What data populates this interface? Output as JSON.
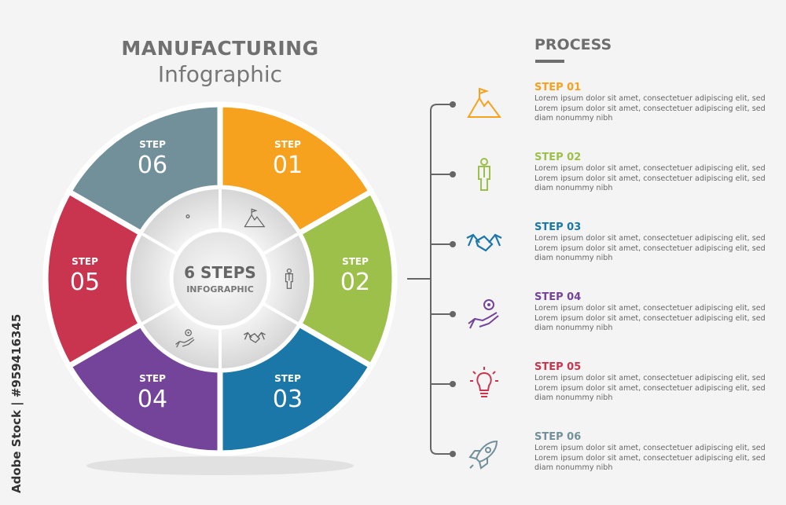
{
  "header": {
    "title": "MANUFACTURING",
    "subtitle": "Infographic"
  },
  "center": {
    "line1": "6 STEPS",
    "line2": "INFOGRAPHIC"
  },
  "process": {
    "title": "PROCESS"
  },
  "steps": [
    {
      "word": "STEP",
      "num": "01",
      "title": "STEP 01",
      "color": "#f7a21e",
      "icon": "mountain-flag-icon",
      "lines": [
        "Lorem ipsum dolor sit amet, consectetuer adipiscing elit, sed",
        "Lorem ipsum dolor sit amet, consectetuer adipiscing elit, sed",
        "diam nonummy nibh"
      ]
    },
    {
      "word": "STEP",
      "num": "02",
      "title": "STEP 02",
      "color": "#9dc04a",
      "icon": "businessman-icon",
      "lines": [
        "Lorem ipsum dolor sit amet, consectetuer adipiscing elit, sed",
        "Lorem ipsum dolor sit amet, consectetuer adipiscing elit, sed",
        "diam nonummy nibh"
      ]
    },
    {
      "word": "STEP",
      "num": "03",
      "title": "STEP 03",
      "color": "#1a77a8",
      "icon": "handshake-icon",
      "lines": [
        "Lorem ipsum dolor sit amet, consectetuer adipiscing elit, sed",
        "Lorem ipsum dolor sit amet, consectetuer adipiscing elit, sed",
        "diam nonummy nibh"
      ]
    },
    {
      "word": "STEP",
      "num": "04",
      "title": "STEP 04",
      "color": "#73449a",
      "icon": "hand-gear-icon",
      "lines": [
        "Lorem ipsum dolor sit amet, consectetuer adipiscing elit, sed",
        "Lorem ipsum dolor sit amet, consectetuer adipiscing elit, sed",
        "diam nonummy nibh"
      ]
    },
    {
      "word": "STEP",
      "num": "05",
      "title": "STEP 05",
      "color": "#c9354f",
      "icon": "lightbulb-icon",
      "lines": [
        "Lorem ipsum dolor sit amet, consectetuer adipiscing elit, sed",
        "Lorem ipsum dolor sit amet, consectetuer adipiscing elit, sed",
        "diam nonummy nibh"
      ]
    },
    {
      "word": "STEP",
      "num": "06",
      "title": "STEP 06",
      "color": "#72909a",
      "icon": "rocket-icon",
      "lines": [
        "Lorem ipsum dolor sit amet, consectetuer adipiscing elit, sed",
        "Lorem ipsum dolor sit amet, consectetuer adipiscing elit, sed",
        "diam nonummy nibh"
      ]
    }
  ],
  "watermark": "Adobe Stock | #959416345"
}
